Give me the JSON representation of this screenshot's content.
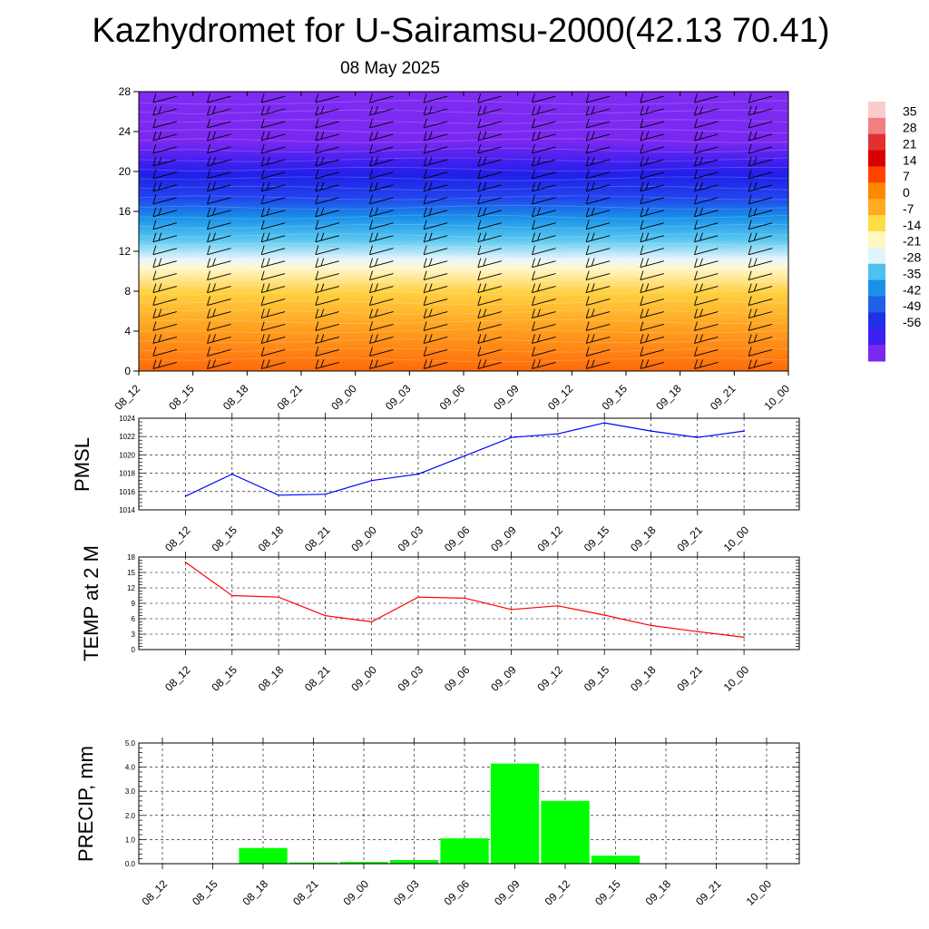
{
  "header": {
    "title": "Kazhydromet for U-Sairamsu-2000(42.13 70.41)",
    "date": "08 May 2025"
  },
  "colors": {
    "pmsl_line": "#0000ff",
    "temp_line": "#ff0000",
    "precip_bar": "#00ff00",
    "wind_barb": "#000000"
  },
  "chart_data": [
    {
      "type": "heatmap",
      "name": "cross-section",
      "x": [
        "08_12",
        "08_15",
        "08_18",
        "08_21",
        "09_00",
        "09_03",
        "09_06",
        "09_09",
        "09_12",
        "09_15",
        "09_18",
        "09_21",
        "10_00"
      ],
      "yticks": [
        "0",
        "4",
        "8",
        "12",
        "16",
        "20",
        "24",
        "28"
      ],
      "ylim": [
        0,
        28
      ],
      "colorbar": [
        "35",
        "28",
        "21",
        "14",
        "7",
        "0",
        "-7",
        "-14",
        "-21",
        "-28",
        "-35",
        "-42",
        "-49",
        "-56"
      ],
      "wind_barbs": true
    },
    {
      "type": "line",
      "name": "pmsl",
      "ylabel": "PMSL",
      "x": [
        "08_12",
        "08_15",
        "08_18",
        "08_21",
        "09_00",
        "09_03",
        "09_06",
        "09_09",
        "09_12",
        "09_15",
        "09_18",
        "09_21",
        "10_00"
      ],
      "values": [
        1015.5,
        1017.9,
        1015.6,
        1015.7,
        1017.2,
        1017.9,
        1019.9,
        1021.9,
        1022.3,
        1023.5,
        1022.6,
        1021.9,
        1022.6
      ],
      "ylim": [
        1014,
        1024
      ],
      "yticks": [
        "1014",
        "1016",
        "1018",
        "1020",
        "1022",
        "1024"
      ],
      "grid": true
    },
    {
      "type": "line",
      "name": "temp",
      "ylabel": "TEMP at 2 M",
      "x": [
        "08_12",
        "08_15",
        "08_18",
        "08_21",
        "09_00",
        "09_03",
        "09_06",
        "09_09",
        "09_12",
        "09_15",
        "09_18",
        "09_21",
        "10_00"
      ],
      "values": [
        17.0,
        10.5,
        10.2,
        6.6,
        5.4,
        10.2,
        10.0,
        7.8,
        8.5,
        6.7,
        4.7,
        3.5,
        2.4
      ],
      "ylim": [
        0,
        18
      ],
      "yticks": [
        "0",
        "3",
        "6",
        "9",
        "12",
        "15",
        "18"
      ],
      "grid": true
    },
    {
      "type": "bar",
      "name": "precip",
      "ylabel": "PRECIP, mm",
      "x": [
        "08_12",
        "08_15",
        "08_18",
        "08_21",
        "09_00",
        "09_03",
        "09_06",
        "09_09",
        "09_12",
        "09_15",
        "09_18",
        "09_21",
        "10_00"
      ],
      "values": [
        0,
        0,
        0.65,
        0.05,
        0.07,
        0.15,
        1.05,
        4.15,
        2.6,
        0.33,
        0,
        0,
        0
      ],
      "ylim": [
        0,
        5
      ],
      "yticks": [
        "0.0",
        "1.0",
        "2.0",
        "3.0",
        "4.0",
        "5.0"
      ],
      "grid": true
    }
  ]
}
